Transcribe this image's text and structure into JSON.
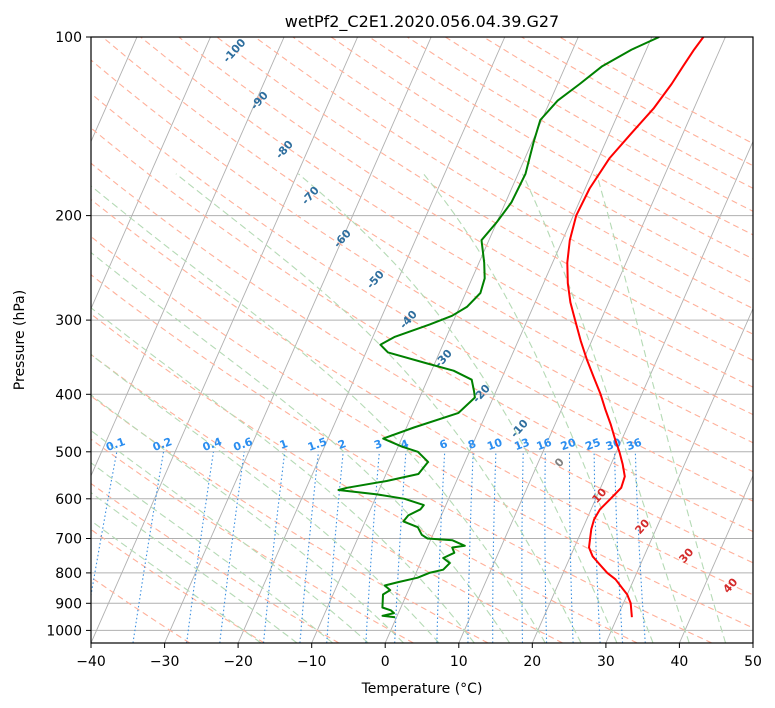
{
  "chart_data": {
    "type": "line",
    "title": "wetPf2_C2E1.2020.056.04.39.G27",
    "xlabel": "Temperature (°C)",
    "ylabel": "Pressure (hPa)",
    "xlim": [
      -40,
      50
    ],
    "ylim": [
      1050,
      100
    ],
    "y_scale": "log",
    "grid": true,
    "x_ticks": [
      -40,
      -30,
      -20,
      -10,
      0,
      10,
      20,
      30,
      40,
      50
    ],
    "y_ticks": [
      100,
      200,
      300,
      400,
      500,
      600,
      700,
      800,
      900,
      1000
    ],
    "series": [
      {
        "color": "#ff0000",
        "points": [
          [
            32.0,
            950
          ],
          [
            31.5,
            925
          ],
          [
            31.0,
            900
          ],
          [
            30.0,
            870
          ],
          [
            29.0,
            850
          ],
          [
            27.5,
            820
          ],
          [
            26.0,
            800
          ],
          [
            24.5,
            775
          ],
          [
            23.0,
            750
          ],
          [
            22.0,
            725
          ],
          [
            21.6,
            700
          ],
          [
            21.2,
            675
          ],
          [
            21.0,
            650
          ],
          [
            21.2,
            625
          ],
          [
            22.0,
            600
          ],
          [
            22.8,
            575
          ],
          [
            22.6,
            550
          ],
          [
            21.6,
            525
          ],
          [
            20.4,
            500
          ],
          [
            19.0,
            475
          ],
          [
            17.6,
            450
          ],
          [
            16.0,
            425
          ],
          [
            14.4,
            400
          ],
          [
            12.5,
            375
          ],
          [
            10.5,
            350
          ],
          [
            8.5,
            325
          ],
          [
            6.5,
            300
          ],
          [
            4.8,
            280
          ],
          [
            3.3,
            260
          ],
          [
            2.0,
            240
          ],
          [
            1.0,
            220
          ],
          [
            0.4,
            200
          ],
          [
            0.6,
            180
          ],
          [
            1.5,
            160
          ],
          [
            3.0,
            145
          ],
          [
            4.5,
            132
          ],
          [
            5.5,
            120
          ],
          [
            6.0,
            112
          ],
          [
            6.5,
            105
          ],
          [
            7.0,
            100
          ]
        ]
      },
      {
        "color": "#008000",
        "points": [
          [
            -0.2,
            950
          ],
          [
            -2.0,
            945
          ],
          [
            -0.6,
            935
          ],
          [
            -1.2,
            925
          ],
          [
            -2.5,
            915
          ],
          [
            -2.8,
            895
          ],
          [
            -3.2,
            870
          ],
          [
            -2.5,
            855
          ],
          [
            -3.5,
            840
          ],
          [
            -2.0,
            830
          ],
          [
            0.5,
            815
          ],
          [
            1.8,
            800
          ],
          [
            3.5,
            790
          ],
          [
            4.0,
            770
          ],
          [
            2.8,
            755
          ],
          [
            4.0,
            740
          ],
          [
            3.4,
            725
          ],
          [
            5.0,
            720
          ],
          [
            3.0,
            705
          ],
          [
            -0.5,
            700
          ],
          [
            -1.5,
            690
          ],
          [
            -2.5,
            670
          ],
          [
            -4.8,
            655
          ],
          [
            -4.5,
            640
          ],
          [
            -3.2,
            625
          ],
          [
            -3.0,
            615
          ],
          [
            -6.0,
            600
          ],
          [
            -10.0,
            590
          ],
          [
            -15.5,
            580
          ],
          [
            -14.5,
            575
          ],
          [
            -9.5,
            560
          ],
          [
            -5.6,
            545
          ],
          [
            -5.0,
            520
          ],
          [
            -7.0,
            500
          ],
          [
            -9.5,
            490
          ],
          [
            -12.5,
            475
          ],
          [
            -9.0,
            455
          ],
          [
            -3.8,
            430
          ],
          [
            -2.5,
            405
          ],
          [
            -3.0,
            395
          ],
          [
            -4.0,
            378
          ],
          [
            -7.0,
            365
          ],
          [
            -11.0,
            355
          ],
          [
            -17.0,
            340
          ],
          [
            -18.5,
            330
          ],
          [
            -17.0,
            320
          ],
          [
            -13.0,
            305
          ],
          [
            -10.5,
            295
          ],
          [
            -9.0,
            285
          ],
          [
            -8.0,
            270
          ],
          [
            -8.3,
            255
          ],
          [
            -9.3,
            240
          ],
          [
            -11.0,
            220
          ],
          [
            -10.0,
            205
          ],
          [
            -9.2,
            190
          ],
          [
            -9.0,
            170
          ],
          [
            -9.8,
            150
          ],
          [
            -10.2,
            138
          ],
          [
            -9.0,
            128
          ],
          [
            -7.0,
            120
          ],
          [
            -5.0,
            112
          ],
          [
            -2.0,
            105
          ],
          [
            1.0,
            100
          ]
        ]
      }
    ],
    "labels": {
      "dry_adiabats": [
        "-100",
        "-90",
        "-80",
        "-70",
        "-60",
        "-50",
        "-40",
        "-30",
        "-20",
        "-10",
        "0",
        "10",
        "20",
        "30",
        "40"
      ],
      "mixing_ratio": [
        "0.1",
        "0.2",
        "0.4",
        "0.6",
        "1",
        "1.5",
        "2",
        "3",
        "4",
        "6",
        "8",
        "10",
        "13",
        "16",
        "20",
        "25",
        "30",
        "36"
      ]
    },
    "line_colors": {
      "isotherms": "#b0b0b0",
      "dry_adiabats": "#ffb09a",
      "moist_adiabats": "#b5dab5",
      "mixing_ratio": "#3a8fe0",
      "reference_curves": "#d9c6ae",
      "dry_adiabat_label_cold": "#2e6e9e",
      "dry_adiabat_label_zero": "#808080",
      "dry_adiabat_label_warm": "#d42a2a",
      "mixing_ratio_label": "#2b8ef0"
    }
  }
}
